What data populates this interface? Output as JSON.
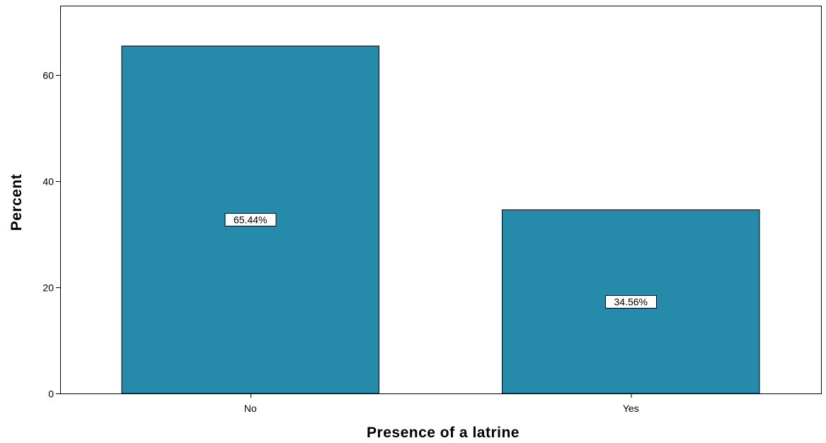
{
  "chart_data": {
    "type": "bar",
    "categories": [
      "No",
      "Yes"
    ],
    "values": [
      65.44,
      34.56
    ],
    "data_labels": [
      "65.44%",
      "34.56%"
    ],
    "title": "",
    "xlabel": "Presence of a latrine",
    "ylabel": "Percent",
    "ylim": [
      0,
      73
    ],
    "yticks": [
      0,
      20,
      40,
      60
    ],
    "ytick_labels": [
      "0",
      "20",
      "40",
      "60"
    ],
    "grid": false,
    "legend": "none",
    "bar_color": "#268bab",
    "bar_edge_color": "#000000"
  }
}
